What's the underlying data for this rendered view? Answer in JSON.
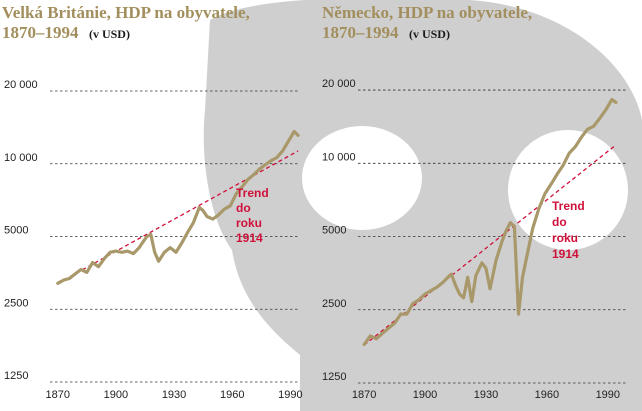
{
  "colors": {
    "series": "#a8986a",
    "trend": "#d0103a",
    "title": "#a38f5e",
    "skull": "#cfcfcf",
    "grid": "#333333"
  },
  "chart_data": [
    {
      "type": "line",
      "title": "Velká Británie, HDP na obyvatele,",
      "title_line2": "1870–1994",
      "unit": "(v USD)",
      "y_scale": "log",
      "ylim": [
        1250,
        22000
      ],
      "xlim": [
        1866,
        1996
      ],
      "y_ticks": [
        {
          "value": 1250,
          "label": "1250"
        },
        {
          "value": 2500,
          "label": "2500"
        },
        {
          "value": 5000,
          "label": "5000"
        },
        {
          "value": 10000,
          "label": "10 000"
        },
        {
          "value": 20000,
          "label": "20 000"
        }
      ],
      "x_ticks": [
        {
          "value": 1870,
          "label": "1870"
        },
        {
          "value": 1900,
          "label": "1900"
        },
        {
          "value": 1930,
          "label": "1930"
        },
        {
          "value": 1960,
          "label": "1960"
        },
        {
          "value": 1990,
          "label": "1990"
        }
      ],
      "grid": "dashed horizontal",
      "series": [
        {
          "x": [
            1870,
            1873,
            1876,
            1879,
            1882,
            1885,
            1888,
            1891,
            1894,
            1897,
            1900,
            1903,
            1906,
            1909,
            1912,
            1914,
            1916,
            1918,
            1920,
            1922,
            1925,
            1928,
            1931,
            1934,
            1937,
            1940,
            1943,
            1945,
            1947,
            1950,
            1953,
            1956,
            1959,
            1962,
            1965,
            1968,
            1971,
            1974,
            1977,
            1980,
            1983,
            1986,
            1989,
            1992,
            1994
          ],
          "values": [
            3200,
            3300,
            3350,
            3500,
            3650,
            3550,
            3900,
            3750,
            4050,
            4300,
            4350,
            4300,
            4350,
            4250,
            4500,
            4750,
            5000,
            5100,
            4300,
            3950,
            4300,
            4500,
            4300,
            4700,
            5200,
            5700,
            6600,
            6400,
            6050,
            5900,
            6150,
            6500,
            6700,
            7500,
            8000,
            8600,
            9000,
            9500,
            9900,
            10300,
            10600,
            11300,
            12400,
            13600,
            13100
          ]
        }
      ],
      "trend": {
        "label": [
          "Trend",
          "do",
          "roku",
          "1914"
        ],
        "x": [
          1870,
          1994
        ],
        "values": [
          3200,
          11300
        ]
      }
    },
    {
      "type": "line",
      "title": "Německo, HDP na obyvatele,",
      "title_line2": "1870–1994",
      "unit": "(v USD)",
      "y_scale": "log",
      "ylim": [
        1250,
        22000
      ],
      "xlim": [
        1866,
        1996
      ],
      "y_ticks": [
        {
          "value": 1250,
          "label": "1250"
        },
        {
          "value": 2500,
          "label": "2500"
        },
        {
          "value": 5000,
          "label": "5000"
        },
        {
          "value": 10000,
          "label": "10 000"
        },
        {
          "value": 20000,
          "label": "20 000"
        }
      ],
      "x_ticks": [
        {
          "value": 1870,
          "label": "1870"
        },
        {
          "value": 1900,
          "label": "1900"
        },
        {
          "value": 1930,
          "label": "1930"
        },
        {
          "value": 1960,
          "label": "1960"
        },
        {
          "value": 1990,
          "label": "1990"
        }
      ],
      "grid": "dashed horizontal",
      "series": [
        {
          "x": [
            1870,
            1873,
            1876,
            1879,
            1882,
            1885,
            1888,
            1891,
            1894,
            1897,
            1900,
            1903,
            1906,
            1909,
            1912,
            1913,
            1915,
            1917,
            1919,
            1921,
            1923,
            1925,
            1928,
            1930,
            1932,
            1935,
            1938,
            1940,
            1942,
            1944,
            1946,
            1948,
            1950,
            1953,
            1956,
            1959,
            1962,
            1965,
            1968,
            1971,
            1974,
            1977,
            1980,
            1983,
            1986,
            1989,
            1992,
            1994
          ],
          "values": [
            1800,
            1950,
            1900,
            2000,
            2100,
            2200,
            2400,
            2400,
            2650,
            2750,
            2900,
            3000,
            3100,
            3250,
            3450,
            3500,
            3150,
            2900,
            2800,
            3400,
            2700,
            3450,
            3900,
            3700,
            3050,
            4000,
            4800,
            5300,
            5700,
            5500,
            2400,
            3400,
            4100,
            5400,
            6500,
            7500,
            8200,
            9000,
            9800,
            11000,
            11700,
            12800,
            13800,
            14200,
            15300,
            16600,
            18300,
            17800
          ]
        }
      ],
      "trend": {
        "label": [
          "Trend",
          "do",
          "roku",
          "1914"
        ],
        "x": [
          1870,
          1994
        ],
        "values": [
          1790,
          11900
        ]
      }
    }
  ]
}
